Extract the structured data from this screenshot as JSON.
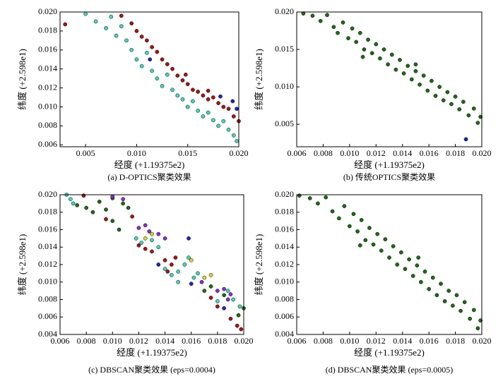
{
  "chart_data": [
    {
      "type": "scatter",
      "caption": "(a) D-OPTICS聚类效果",
      "x_label": "经度 (+1.19375e2)",
      "y_label": "纬度 (+2.598e1)",
      "xlim": [
        0.0025,
        0.02
      ],
      "xticks": [
        0.005,
        {
          "value": 0.01,
          "label": "0.010"
        },
        0.015,
        {
          "value": 0.02,
          "label": "0.020"
        }
      ],
      "ylim": [
        0.0058,
        0.02
      ],
      "yticks": [
        0.006,
        0.008,
        {
          "value": 0.01,
          "label": "0.010"
        },
        0.012,
        0.014,
        0.016,
        0.018,
        {
          "value": 0.02,
          "label": "0.020"
        }
      ],
      "series": [
        {
          "color": "#40d8b8",
          "x": [
            0.005,
            0.006,
            0.007,
            0.008,
            0.009,
            0.0095,
            0.01,
            0.0105,
            0.011,
            0.0115,
            0.012,
            0.0125,
            0.013,
            0.0135,
            0.014,
            0.0145,
            0.015,
            0.0155,
            0.016,
            0.0165,
            0.017,
            0.0175,
            0.018,
            0.0185,
            0.019,
            0.0195,
            0.0198,
            0.0085,
            0.0075
          ],
          "values": [
            0.0198,
            0.019,
            0.0183,
            0.0175,
            0.017,
            0.016,
            0.015,
            0.0143,
            0.0157,
            0.0138,
            0.013,
            0.0122,
            0.0134,
            0.0118,
            0.0112,
            0.0108,
            0.01,
            0.0106,
            0.0096,
            0.009,
            0.0094,
            0.0086,
            0.008,
            0.0085,
            0.0076,
            0.007,
            0.0064,
            0.0185,
            0.0195
          ]
        },
        {
          "color": "#b01010",
          "x": [
            0.003,
            0.0085,
            0.0095,
            0.01,
            0.0105,
            0.011,
            0.0115,
            0.012,
            0.0125,
            0.013,
            0.0135,
            0.014,
            0.0145,
            0.015,
            0.0155,
            0.016,
            0.0165,
            0.017,
            0.0175,
            0.018,
            0.0185,
            0.019,
            0.0195,
            0.02,
            0.0148,
            0.017
          ],
          "values": [
            0.0187,
            0.0196,
            0.0188,
            0.018,
            0.0174,
            0.017,
            0.0163,
            0.0158,
            0.015,
            0.0145,
            0.014,
            0.0133,
            0.0128,
            0.0124,
            0.0118,
            0.0116,
            0.0112,
            0.0108,
            0.011,
            0.0104,
            0.01,
            0.0098,
            0.009,
            0.0085,
            0.0134,
            0.0117
          ]
        },
        {
          "color": "#2020d0",
          "x": [
            0.0113,
            0.0182,
            0.0194,
            0.0198
          ],
          "values": [
            0.015,
            0.0111,
            0.0106,
            0.0098
          ]
        }
      ]
    },
    {
      "type": "scatter",
      "caption": "(b) 传统OPTICS聚类效果",
      "x_label": "经度 (+1.19375e2)",
      "y_label": "纬度 (+2.598e1)",
      "xlim": [
        0.006,
        0.02
      ],
      "xticks": [
        0.006,
        0.008,
        {
          "value": 0.01,
          "label": "0.010"
        },
        0.012,
        0.014,
        0.016,
        0.018,
        {
          "value": 0.02,
          "label": "0.020"
        }
      ],
      "ylim": [
        0.002,
        0.02
      ],
      "yticks": [
        0.005,
        {
          "value": 0.01,
          "label": "0.010"
        },
        0.015,
        {
          "value": 0.02,
          "label": "0.020"
        }
      ],
      "series": [
        {
          "color": "#1a6e10",
          "x": [
            0.0065,
            0.0072,
            0.0078,
            0.0083,
            0.0088,
            0.0091,
            0.0095,
            0.0099,
            0.0102,
            0.0105,
            0.0108,
            0.0111,
            0.0114,
            0.0117,
            0.012,
            0.0123,
            0.0126,
            0.0129,
            0.0132,
            0.0135,
            0.0138,
            0.0141,
            0.0144,
            0.0147,
            0.015,
            0.0153,
            0.0156,
            0.0159,
            0.0162,
            0.0165,
            0.0168,
            0.0171,
            0.0174,
            0.0177,
            0.018,
            0.0183,
            0.0186,
            0.019,
            0.0194,
            0.0197,
            0.0199,
            0.015,
            0.011
          ],
          "values": [
            0.0198,
            0.0195,
            0.0188,
            0.0196,
            0.018,
            0.0172,
            0.0186,
            0.0165,
            0.0178,
            0.016,
            0.0172,
            0.015,
            0.0163,
            0.0145,
            0.0157,
            0.0138,
            0.015,
            0.013,
            0.0143,
            0.0123,
            0.0136,
            0.0118,
            0.0128,
            0.011,
            0.0121,
            0.0103,
            0.0115,
            0.0095,
            0.0108,
            0.0088,
            0.01,
            0.0082,
            0.0093,
            0.0077,
            0.0087,
            0.007,
            0.008,
            0.0062,
            0.0071,
            0.0052,
            0.006,
            0.013,
            0.014
          ]
        },
        {
          "color": "#2020d0",
          "x": [
            0.0188
          ],
          "values": [
            0.003
          ]
        }
      ]
    },
    {
      "type": "scatter",
      "caption": "(c) DBSCAN聚类效果 (eps=0.0004)",
      "x_label": "经度 (+1.19375e2)",
      "y_label": "纬度 (+2.598e1)",
      "xlim": [
        0.006,
        0.02
      ],
      "xticks": [
        0.006,
        0.008,
        {
          "value": 0.01,
          "label": "0.010"
        },
        0.012,
        0.014,
        0.016,
        0.018,
        {
          "value": 0.02,
          "label": "0.020"
        }
      ],
      "ylim": [
        0.004,
        0.02
      ],
      "yticks": [
        0.004,
        0.006,
        0.008,
        {
          "value": 0.01,
          "label": "0.010"
        },
        0.012,
        0.014,
        0.016,
        0.018,
        {
          "value": 0.02,
          "label": "0.020"
        }
      ],
      "series": [
        {
          "color": "#1a6e10",
          "x": [
            0.0073,
            0.008,
            0.0085,
            0.009,
            0.0095,
            0.01,
            0.0108,
            0.0112,
            0.01,
            0.0105,
            0.02,
            0.0196,
            0.0185,
            0.0175,
            0.017
          ],
          "values": [
            0.0188,
            0.0185,
            0.018,
            0.0192,
            0.0183,
            0.0196,
            0.019,
            0.0185,
            0.017,
            0.016,
            0.007,
            0.0062,
            0.0085,
            0.0095,
            0.009
          ]
        },
        {
          "color": "#40d8b8",
          "x": [
            0.0065,
            0.0068,
            0.007,
            0.0118,
            0.0122,
            0.013,
            0.0135,
            0.014,
            0.0145,
            0.015,
            0.0155,
            0.0158,
            0.0162,
            0.0165,
            0.018,
            0.0188,
            0.0192,
            0.0197,
            0.015
          ],
          "values": [
            0.02,
            0.0195,
            0.019,
            0.015,
            0.0145,
            0.0148,
            0.014,
            0.0115,
            0.0108,
            0.0112,
            0.012,
            0.0128,
            0.0105,
            0.011,
            0.0078,
            0.009,
            0.008,
            0.0072,
            0.01
          ]
        },
        {
          "color": "#b01010",
          "x": [
            0.0078,
            0.0095,
            0.0115,
            0.012,
            0.0125,
            0.013,
            0.014,
            0.0145,
            0.0142,
            0.0148,
            0.0175,
            0.018,
            0.0195,
            0.0198,
            0.019
          ],
          "values": [
            0.0199,
            0.0172,
            0.0175,
            0.0142,
            0.0138,
            0.0135,
            0.0125,
            0.012,
            0.0112,
            0.0128,
            0.0082,
            0.0072,
            0.005,
            0.0046,
            0.0058
          ]
        },
        {
          "color": "#8a2be2",
          "x": [
            0.01,
            0.0108,
            0.012,
            0.0125,
            0.0128,
            0.0135,
            0.014,
            0.018,
            0.0185,
            0.019,
            0.0188,
            0.0168
          ],
          "values": [
            0.0198,
            0.0195,
            0.0162,
            0.0165,
            0.0158,
            0.0155,
            0.015,
            0.009,
            0.0092,
            0.0086,
            0.008,
            0.01
          ]
        },
        {
          "color": "#d8d820",
          "x": [
            0.0125,
            0.013,
            0.017,
            0.0175,
            0.016
          ],
          "values": [
            0.015,
            0.0155,
            0.0105,
            0.0108,
            0.0125
          ]
        },
        {
          "color": "#2020d0",
          "x": [
            0.0135,
            0.016,
            0.0158,
            0.0185
          ],
          "values": [
            0.012,
            0.0098,
            0.015,
            0.007
          ]
        }
      ]
    },
    {
      "type": "scatter",
      "caption": "(d) DBSCAN聚类效果 (eps=0.0005)",
      "x_label": "经度 (+1.19375e2)",
      "y_label": "纬度 (+2.598e1)",
      "xlim": [
        0.006,
        0.02
      ],
      "xticks": [
        0.006,
        0.008,
        {
          "value": 0.01,
          "label": "0.010"
        },
        0.012,
        0.014,
        0.016,
        0.018,
        {
          "value": 0.02,
          "label": "0.020"
        }
      ],
      "ylim": [
        0.004,
        0.02
      ],
      "yticks": [
        0.004,
        0.006,
        0.008,
        {
          "value": 0.01,
          "label": "0.010"
        },
        0.012,
        0.014,
        0.016,
        0.018,
        {
          "value": 0.02,
          "label": "0.020"
        }
      ],
      "series": [
        {
          "color": "#1a6e10",
          "x": [
            0.0062,
            0.007,
            0.0076,
            0.0082,
            0.0087,
            0.0092,
            0.0096,
            0.01,
            0.0103,
            0.0106,
            0.0109,
            0.0112,
            0.0115,
            0.0118,
            0.0121,
            0.0124,
            0.0127,
            0.013,
            0.0133,
            0.0136,
            0.0139,
            0.0142,
            0.0145,
            0.0148,
            0.0151,
            0.0154,
            0.0157,
            0.016,
            0.0163,
            0.0166,
            0.0169,
            0.0172,
            0.0175,
            0.0178,
            0.0181,
            0.0184,
            0.0187,
            0.0191,
            0.0194,
            0.0197,
            0.0199,
            0.0152,
            0.0108
          ],
          "values": [
            0.0199,
            0.0196,
            0.019,
            0.0197,
            0.0181,
            0.0173,
            0.0187,
            0.0164,
            0.0178,
            0.0158,
            0.0171,
            0.0148,
            0.0162,
            0.0143,
            0.0155,
            0.0136,
            0.0149,
            0.0128,
            0.0141,
            0.012,
            0.0134,
            0.0115,
            0.0126,
            0.0107,
            0.0119,
            0.01,
            0.0112,
            0.0092,
            0.0105,
            0.0085,
            0.0098,
            0.0078,
            0.009,
            0.0073,
            0.0085,
            0.0067,
            0.0077,
            0.0058,
            0.0068,
            0.0047,
            0.0056,
            0.0128,
            0.0142
          ]
        }
      ]
    }
  ]
}
